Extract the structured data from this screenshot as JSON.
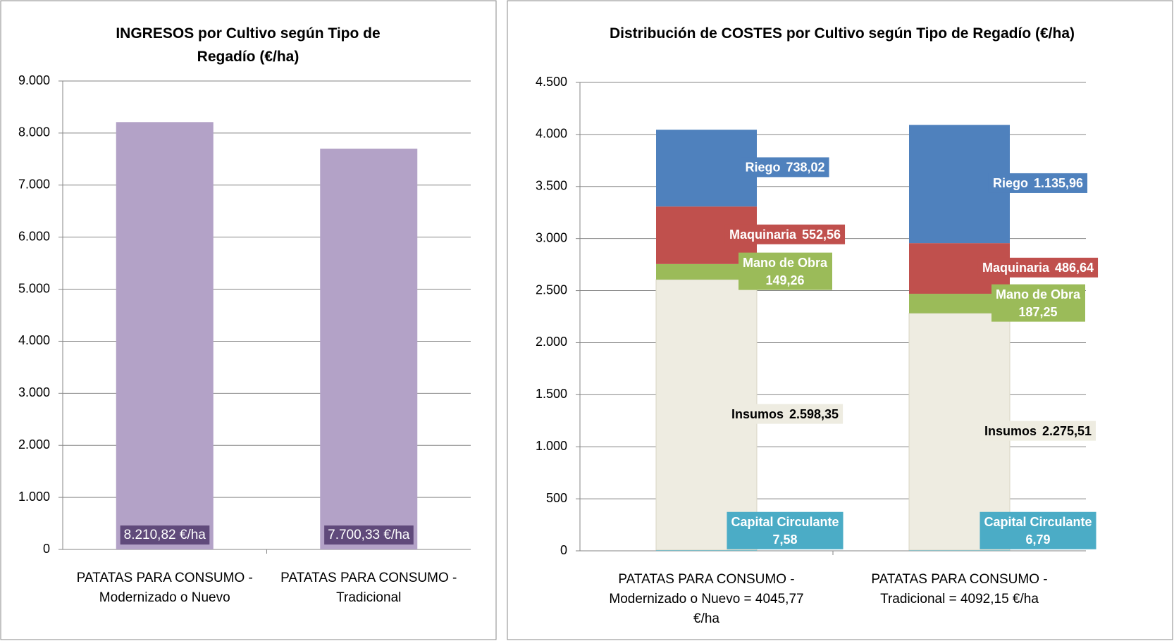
{
  "chart_data": [
    {
      "type": "bar",
      "title": "INGRESOS por Cultivo según Tipo de Regadío (€/ha)",
      "categories": [
        "PATATAS PARA CONSUMO - Modernizado o Nuevo",
        "PATATAS PARA CONSUMO - Tradicional"
      ],
      "values": [
        8210.82,
        7700.33
      ],
      "value_labels": [
        "8.210,82 €/ha",
        "7.700,33 €/ha"
      ],
      "color": "#b3a2c7",
      "label_color": "#604a7b",
      "ylim": [
        0,
        9000
      ],
      "yticks": [
        0,
        {
          "value": 1000,
          "label": "1.000"
        },
        {
          "value": 2000,
          "label": "2.000"
        },
        {
          "value": 3000,
          "label": "3.000"
        },
        {
          "value": 4000,
          "label": "4.000"
        },
        {
          "value": 5000,
          "label": "5.000"
        },
        {
          "value": 6000,
          "label": "6.000"
        },
        {
          "value": 7000,
          "label": "7.000"
        },
        {
          "value": 8000,
          "label": "8.000"
        },
        {
          "value": 9000,
          "label": "9.000"
        }
      ],
      "grid": true
    },
    {
      "type": "stacked_bar",
      "title": "Distribución de COSTES por Cultivo según Tipo de Regadío (€/ha)",
      "categories": [
        "PATATAS PARA CONSUMO - Modernizado o Nuevo = 4045,77 €/ha",
        "PATATAS PARA CONSUMO - Tradicional = 4092,15 €/ha"
      ],
      "series": [
        {
          "name": "Capital Circulante",
          "color": "#4bacc6",
          "values": [
            7.58,
            6.79
          ],
          "value_labels": [
            "7,58",
            "6,79"
          ]
        },
        {
          "name": "Insumos",
          "color": "#eeece1",
          "values": [
            2598.35,
            2275.51
          ],
          "value_labels": [
            "2.598,35",
            "2.275,51"
          ]
        },
        {
          "name": "Mano de Obra",
          "color": "#9bbb59",
          "values": [
            149.26,
            187.25
          ],
          "value_labels": [
            "149,26",
            "187,25"
          ]
        },
        {
          "name": "Maquinaria",
          "color": "#c0504d",
          "values": [
            552.56,
            486.64
          ],
          "value_labels": [
            "552,56",
            "486,64"
          ]
        },
        {
          "name": "Riego",
          "color": "#4f81bd",
          "values": [
            738.02,
            1135.96
          ],
          "value_labels": [
            "738,02",
            "1.135,96"
          ]
        }
      ],
      "ylim": [
        0,
        4500
      ],
      "yticks": [
        0,
        500,
        {
          "value": 1000,
          "label": "1.000"
        },
        {
          "value": 1500,
          "label": "1.500"
        },
        {
          "value": 2000,
          "label": "2.000"
        },
        {
          "value": 2500,
          "label": "2.500"
        },
        {
          "value": 3000,
          "label": "3.000"
        },
        {
          "value": 3500,
          "label": "3.500"
        },
        {
          "value": 4000,
          "label": "4.000"
        },
        {
          "value": 4500,
          "label": "4.500"
        }
      ],
      "grid": true
    }
  ]
}
